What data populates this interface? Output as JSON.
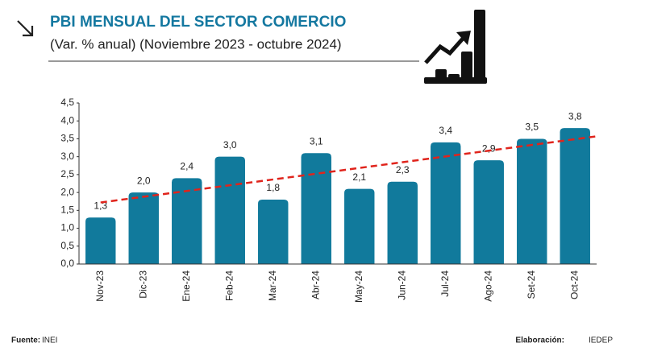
{
  "chart_data": {
    "type": "bar",
    "title": "PBI MENSUAL DEL SECTOR COMERCIO",
    "subtitle": "(Var. % anual) (Noviembre 2023 - octubre 2024)",
    "categories": [
      "Nov-23",
      "Dic-23",
      "Ene-24",
      "Feb-24",
      "Mar-24",
      "Abr-24",
      "May-24",
      "Jun-24",
      "Jul-24",
      "Ago-24",
      "Set-24",
      "Oct-24"
    ],
    "values": [
      1.3,
      2.0,
      2.4,
      3.0,
      1.8,
      3.1,
      2.1,
      2.3,
      3.4,
      2.9,
      3.5,
      3.8
    ],
    "value_labels": [
      "1,3",
      "2,0",
      "2,4",
      "3,0",
      "1,8",
      "3,1",
      "2,1",
      "2,3",
      "3,4",
      "2,9",
      "3,5",
      "3,8"
    ],
    "color": "#117a9c",
    "trend_line": {
      "values": [
        1.72,
        3.57
      ],
      "color": "#e0241c"
    },
    "ylim": [
      0,
      4.5
    ],
    "yticks": [
      {
        "value": 0,
        "label": "0,0"
      },
      {
        "value": 0.5,
        "label": "0,5"
      },
      {
        "value": 1,
        "label": "1,0"
      },
      {
        "value": 1.5,
        "label": "1,5"
      },
      {
        "value": 2,
        "label": "2,0"
      },
      {
        "value": 2.5,
        "label": "2,5"
      },
      {
        "value": 3,
        "label": "3,0"
      },
      {
        "value": 3.5,
        "label": "3,5"
      },
      {
        "value": 4,
        "label": "4,0"
      },
      {
        "value": 4.5,
        "label": "4,5"
      }
    ],
    "source_label": "Fuente:",
    "source": "INEI",
    "credit_label": "Elaboración:",
    "credit": "IEDEP"
  }
}
